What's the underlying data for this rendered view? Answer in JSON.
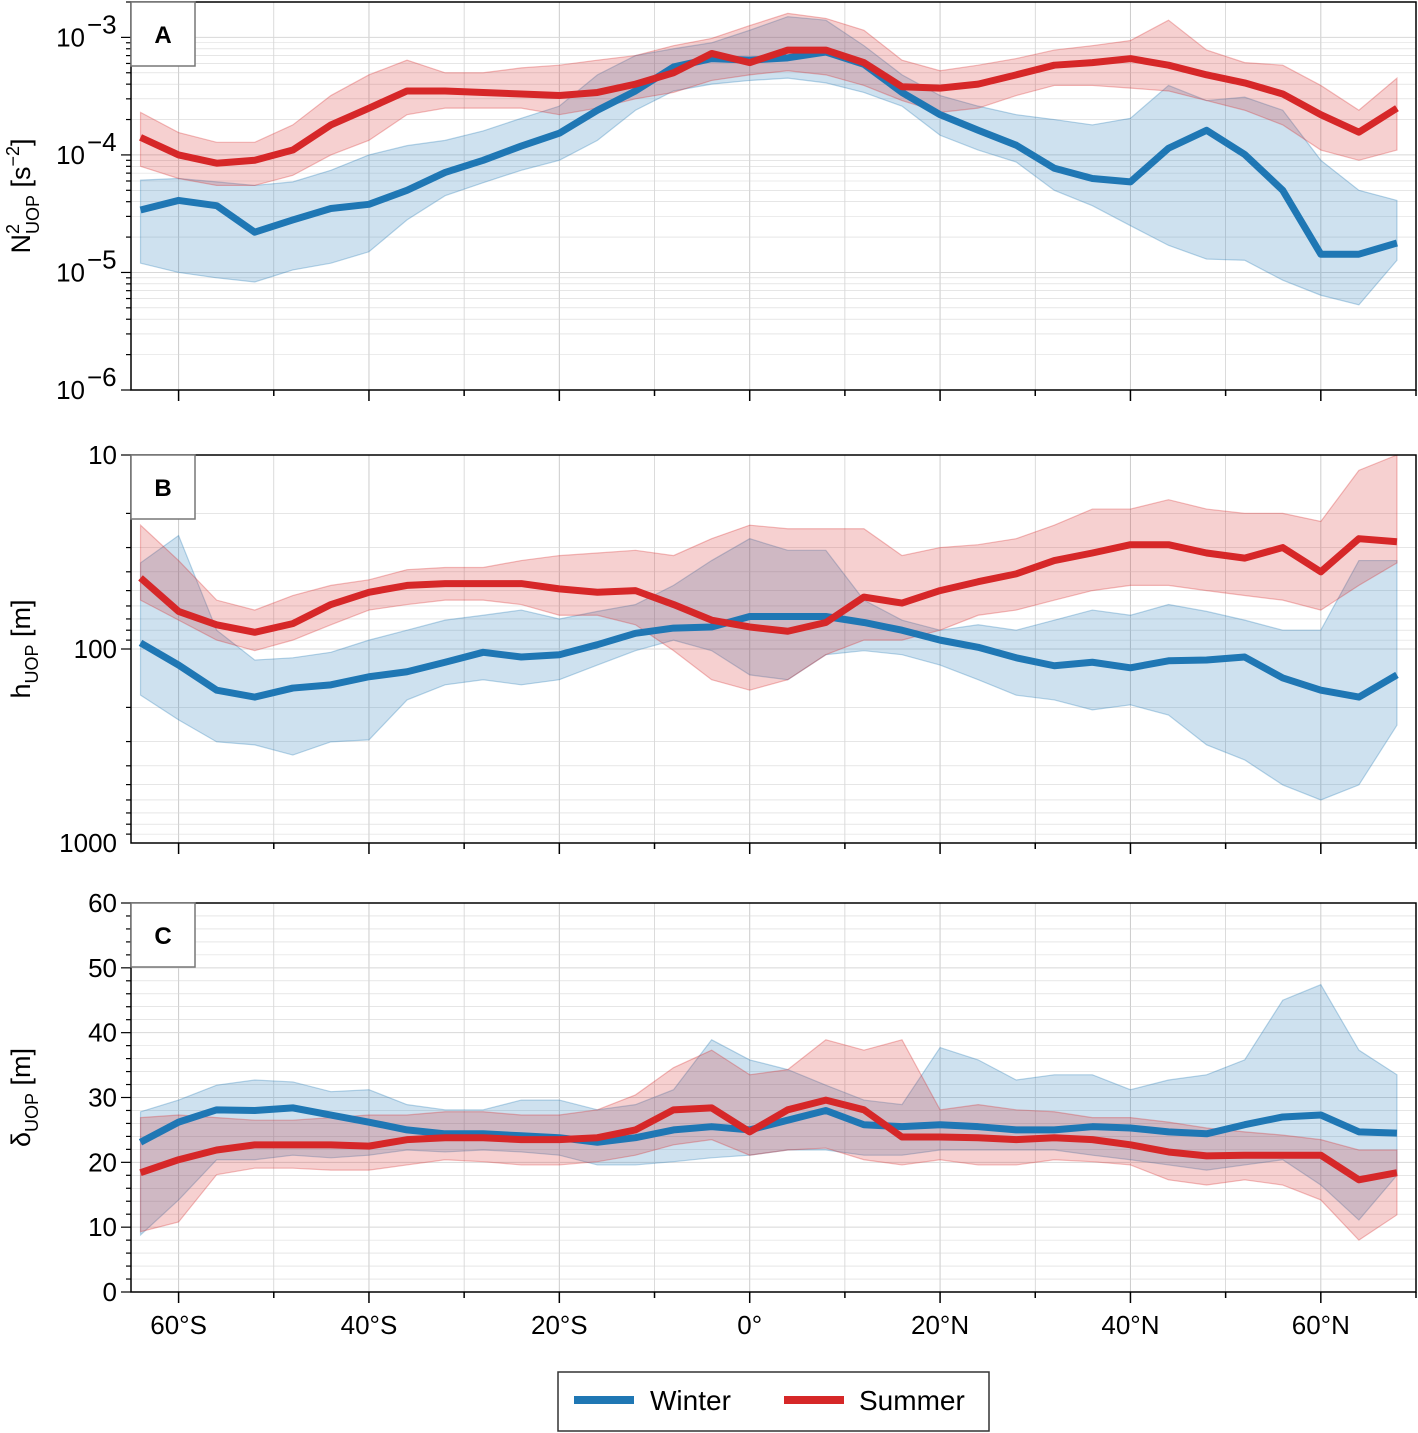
{
  "colors": {
    "winter": "#1f77b4",
    "summer": "#d62728"
  },
  "legend": {
    "items": [
      {
        "label": "Winter",
        "series": "winter"
      },
      {
        "label": "Summer",
        "series": "summer"
      }
    ]
  },
  "x_ticks": [
    {
      "value": -60,
      "label": "60°S"
    },
    {
      "value": -40,
      "label": "40°S"
    },
    {
      "value": -20,
      "label": "20°S"
    },
    {
      "value": 0,
      "label": "0°"
    },
    {
      "value": 20,
      "label": "20°N"
    },
    {
      "value": 40,
      "label": "40°N"
    },
    {
      "value": 60,
      "label": "60°N"
    }
  ],
  "chart_data": [
    {
      "type": "line",
      "panel": "A",
      "xlim": [
        -65,
        70
      ],
      "yscale": "log",
      "ylim": [
        1e-06,
        0.002
      ],
      "ylabel": {
        "main": "N",
        "sup": "2",
        "sub": "UOP",
        "unit": " [s",
        "unit_sup": "−2",
        "unit_end": "]"
      },
      "y_ticks": [
        {
          "value": 0.001,
          "base": "10",
          "exp": "−3"
        },
        {
          "value": 0.0001,
          "base": "10",
          "exp": "−4"
        },
        {
          "value": 1e-05,
          "base": "10",
          "exp": "−5"
        },
        {
          "value": 1e-06,
          "base": "10",
          "exp": "−6"
        }
      ],
      "x": [
        -64,
        -60,
        -56,
        -52,
        -48,
        -44,
        -40,
        -36,
        -32,
        -28,
        -24,
        -20,
        -16,
        -12,
        -8,
        -4,
        0,
        4,
        8,
        12,
        16,
        20,
        24,
        28,
        32,
        36,
        40,
        44,
        48,
        52,
        56,
        60,
        64,
        68
      ],
      "series": [
        {
          "name": "Winter",
          "values": [
            3.4e-05,
            4.1e-05,
            3.7e-05,
            2.2e-05,
            2.8e-05,
            3.5e-05,
            3.8e-05,
            5e-05,
            7.1e-05,
            9e-05,
            0.000119,
            0.000153,
            0.00024,
            0.00035,
            0.00056,
            0.00066,
            0.00064,
            0.00067,
            0.00075,
            0.00059,
            0.00034,
            0.00022,
            0.000162,
            0.000121,
            7.7e-05,
            6.3e-05,
            5.9e-05,
            0.000114,
            0.000162,
            0.000101,
            5e-05,
            1.43e-05,
            1.43e-05,
            1.78e-05
          ],
          "lower": [
            1.2e-05,
            1e-05,
            9e-06,
            8.3e-06,
            1.05e-05,
            1.2e-05,
            1.5e-05,
            2.8e-05,
            4.5e-05,
            5.8e-05,
            7.4e-05,
            9e-05,
            0.000133,
            0.00024,
            0.00035,
            0.0004,
            0.00043,
            0.00045,
            0.00041,
            0.00034,
            0.00026,
            0.000147,
            0.00011,
            8.7e-05,
            5e-05,
            3.7e-05,
            2.5e-05,
            1.7e-05,
            1.3e-05,
            1.27e-05,
            8.6e-06,
            6.4e-06,
            5.3e-06,
            1.27e-05
          ],
          "upper": [
            6.1e-05,
            6.3e-05,
            5.9e-05,
            5.5e-05,
            5.9e-05,
            7.4e-05,
            0.0001,
            0.00012,
            0.000133,
            0.00016,
            0.000205,
            0.00026,
            0.00048,
            0.0007,
            0.0008,
            0.0009,
            0.00115,
            0.0015,
            0.0014,
            0.00085,
            0.00048,
            0.00032,
            0.00026,
            0.00022,
            0.0002,
            0.00018,
            0.000205,
            0.00039,
            0.00029,
            0.00031,
            0.00024,
            9e-05,
            5e-05,
            4.1e-05
          ]
        },
        {
          "name": "Summer",
          "values": [
            0.000141,
            0.0001,
            8.5e-05,
            9e-05,
            0.00011,
            0.00018,
            0.00025,
            0.00035,
            0.00035,
            0.00034,
            0.00033,
            0.00032,
            0.00034,
            0.0004,
            0.0005,
            0.00073,
            0.00061,
            0.00078,
            0.00078,
            0.00061,
            0.00038,
            0.00037,
            0.0004,
            0.00048,
            0.00058,
            0.00061,
            0.00066,
            0.00058,
            0.00048,
            0.00041,
            0.00033,
            0.00022,
            0.000156,
            0.00025
          ],
          "lower": [
            8e-05,
            6.3e-05,
            5.5e-05,
            5.5e-05,
            6.7e-05,
            0.0001,
            0.000133,
            0.00022,
            0.00025,
            0.00025,
            0.00025,
            0.00022,
            0.00025,
            0.0003,
            0.00034,
            0.00043,
            0.00048,
            0.00052,
            0.00048,
            0.00039,
            0.00029,
            0.00023,
            0.00025,
            0.00032,
            0.00039,
            0.00039,
            0.00037,
            0.00035,
            0.00029,
            0.00024,
            0.00018,
            0.00011,
            9e-05,
            0.00011
          ],
          "upper": [
            0.00023,
            0.000155,
            0.000128,
            0.000128,
            0.00018,
            0.00032,
            0.00048,
            0.00064,
            0.0005,
            0.0005,
            0.00055,
            0.00058,
            0.00064,
            0.0007,
            0.00085,
            0.00098,
            0.00126,
            0.0016,
            0.00145,
            0.00115,
            0.00064,
            0.00052,
            0.00058,
            0.00066,
            0.00078,
            0.00085,
            0.00094,
            0.0014,
            0.00078,
            0.00061,
            0.00058,
            0.00039,
            0.00024,
            0.00045
          ]
        }
      ]
    },
    {
      "type": "line",
      "panel": "B",
      "xlim": [
        -65,
        70
      ],
      "yscale": "log",
      "yinverted": true,
      "ylim": [
        10,
        1000
      ],
      "ylabel": {
        "main": "h",
        "sup": "",
        "sub": "UOP",
        "unit": " [m]",
        "unit_sup": "",
        "unit_end": ""
      },
      "y_ticks": [
        {
          "value": 10,
          "base": "10",
          "exp": ""
        },
        {
          "value": 100,
          "base": "100",
          "exp": ""
        },
        {
          "value": 1000,
          "base": "1000",
          "exp": ""
        }
      ],
      "x": [
        -64,
        -60,
        -56,
        -52,
        -48,
        -44,
        -40,
        -36,
        -32,
        -28,
        -24,
        -20,
        -16,
        -12,
        -8,
        -4,
        0,
        4,
        8,
        12,
        16,
        20,
        24,
        28,
        32,
        36,
        40,
        44,
        48,
        52,
        56,
        60,
        64,
        68
      ],
      "series": [
        {
          "name": "Winter",
          "values": [
            93,
            121,
            163,
            177,
            159,
            153,
            139,
            131,
            117,
            104,
            110,
            107,
            95,
            83,
            78,
            77,
            68,
            68,
            68,
            73,
            80,
            90,
            98,
            111,
            122,
            117,
            125,
            115,
            114,
            110,
            141,
            163,
            177,
            136
          ],
          "lower": [
            36,
            26,
            80,
            114,
            111,
            104,
            90,
            80,
            71,
            67,
            63,
            70,
            64,
            59,
            47,
            35,
            27,
            31,
            31,
            56,
            71,
            80,
            75,
            80,
            71,
            63,
            67,
            59,
            64,
            71,
            80,
            80,
            35,
            35
          ],
          "upper": [
            173,
            232,
            301,
            312,
            352,
            301,
            294,
            183,
            153,
            144,
            153,
            144,
            121,
            102,
            90,
            102,
            136,
            144,
            107,
            102,
            107,
            121,
            144,
            173,
            183,
            206,
            194,
            219,
            312,
            373,
            502,
            600,
            502,
            247
          ]
        },
        {
          "name": "Summer",
          "values": [
            43,
            64,
            75,
            82,
            74,
            59,
            51,
            47,
            46,
            46,
            46,
            49,
            51,
            50,
            59,
            71,
            77,
            81,
            73,
            54,
            58,
            50,
            45,
            41,
            35,
            32,
            29,
            29,
            32,
            34,
            30,
            40,
            27,
            28
          ],
          "lower": [
            23,
            35,
            56,
            63,
            53,
            47,
            44,
            39,
            38,
            38,
            35,
            33,
            32,
            31,
            33,
            27,
            23,
            24,
            24,
            24,
            33,
            30,
            29,
            27,
            23,
            19,
            19,
            17,
            19,
            20,
            20,
            22,
            12,
            10
          ],
          "upper": [
            56,
            71,
            90,
            102,
            90,
            75,
            63,
            59,
            56,
            56,
            59,
            67,
            67,
            75,
            102,
            144,
            163,
            144,
            107,
            90,
            90,
            80,
            67,
            63,
            56,
            50,
            47,
            47,
            50,
            53,
            56,
            63,
            47,
            36
          ]
        }
      ]
    },
    {
      "type": "line",
      "panel": "C",
      "xlim": [
        -65,
        70
      ],
      "yscale": "linear",
      "ylim": [
        0,
        60
      ],
      "ylabel": {
        "main": "δ",
        "sup": "",
        "sub": "UOP",
        "unit": " [m]",
        "unit_sup": "",
        "unit_end": ""
      },
      "y_ticks": [
        {
          "value": 0,
          "base": "0",
          "exp": ""
        },
        {
          "value": 10,
          "base": "10",
          "exp": ""
        },
        {
          "value": 20,
          "base": "20",
          "exp": ""
        },
        {
          "value": 30,
          "base": "30",
          "exp": ""
        },
        {
          "value": 40,
          "base": "40",
          "exp": ""
        },
        {
          "value": 50,
          "base": "50",
          "exp": ""
        },
        {
          "value": 60,
          "base": "60",
          "exp": ""
        }
      ],
      "x": [
        -64,
        -60,
        -56,
        -52,
        -48,
        -44,
        -40,
        -36,
        -32,
        -28,
        -24,
        -20,
        -16,
        -12,
        -8,
        -4,
        0,
        4,
        8,
        12,
        16,
        20,
        24,
        28,
        32,
        36,
        40,
        44,
        48,
        52,
        56,
        60,
        64,
        68
      ],
      "series": [
        {
          "name": "Winter",
          "values": [
            23.1,
            26.2,
            28.1,
            28.0,
            28.4,
            27.3,
            26.2,
            25.0,
            24.4,
            24.4,
            24.1,
            23.8,
            23.1,
            23.8,
            25.0,
            25.5,
            25.0,
            26.5,
            28.0,
            25.8,
            25.5,
            25.8,
            25.5,
            25.0,
            25.0,
            25.5,
            25.3,
            24.7,
            24.4,
            25.8,
            27.0,
            27.3,
            24.7,
            24.5
          ],
          "lower": [
            8.8,
            14.2,
            20.4,
            20.4,
            21.1,
            20.7,
            21.1,
            21.9,
            21.6,
            21.9,
            21.6,
            21.1,
            19.6,
            19.6,
            20.1,
            20.7,
            21.1,
            21.9,
            21.9,
            21.1,
            21.1,
            21.9,
            21.9,
            21.9,
            21.9,
            21.1,
            20.4,
            19.6,
            18.8,
            19.6,
            20.4,
            16.5,
            11.1,
            18.0
          ],
          "upper": [
            27.8,
            29.6,
            31.9,
            32.7,
            32.4,
            30.9,
            31.2,
            28.9,
            28.1,
            28.1,
            29.6,
            29.6,
            28.1,
            28.9,
            31.2,
            38.9,
            35.8,
            34.3,
            31.9,
            29.6,
            28.9,
            37.7,
            35.8,
            32.7,
            33.5,
            33.5,
            31.2,
            32.7,
            33.5,
            35.8,
            45.0,
            47.4,
            37.3,
            33.5
          ]
        },
        {
          "name": "Summer",
          "values": [
            18.4,
            20.4,
            21.9,
            22.7,
            22.7,
            22.7,
            22.5,
            23.5,
            23.8,
            23.8,
            23.5,
            23.5,
            23.8,
            25.0,
            28.1,
            28.4,
            24.7,
            28.1,
            29.6,
            28.1,
            23.9,
            23.9,
            23.8,
            23.5,
            23.8,
            23.5,
            22.7,
            21.6,
            21.0,
            21.1,
            21.1,
            21.1,
            17.3,
            18.4
          ],
          "lower": [
            9.3,
            10.8,
            18.1,
            19.1,
            19.1,
            18.8,
            18.8,
            19.6,
            20.4,
            20.1,
            19.6,
            19.6,
            20.1,
            21.1,
            22.7,
            23.5,
            21.1,
            21.9,
            22.2,
            20.4,
            19.6,
            20.4,
            19.6,
            19.6,
            20.4,
            20.1,
            19.6,
            17.3,
            16.5,
            17.3,
            16.5,
            14.2,
            8.0,
            11.9
          ],
          "upper": [
            26.9,
            27.3,
            26.9,
            26.5,
            26.5,
            26.9,
            27.3,
            27.3,
            27.8,
            27.8,
            27.3,
            27.3,
            28.1,
            30.4,
            34.6,
            37.3,
            33.5,
            34.3,
            38.9,
            37.3,
            38.9,
            28.1,
            28.9,
            28.1,
            27.8,
            26.9,
            26.9,
            26.2,
            25.3,
            24.7,
            24.2,
            23.5,
            21.9,
            21.9
          ]
        }
      ]
    }
  ]
}
